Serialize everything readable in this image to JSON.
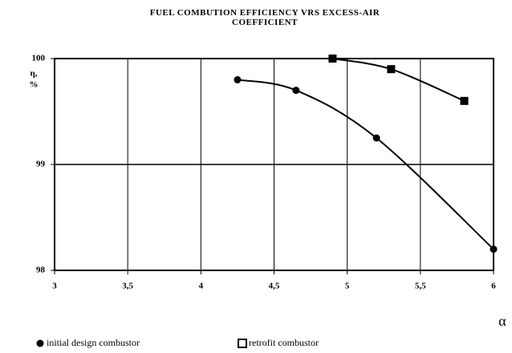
{
  "chart_data": {
    "type": "line",
    "title": "FUEL COMBUTION EFFICIENCY VRS EXCESS-AIR COEFFICIENT",
    "y_label": [
      "η,",
      "%"
    ],
    "x_label": "α",
    "xlim": [
      3,
      6
    ],
    "xticks": [
      3,
      {
        "value": 3.5,
        "label": "3,5"
      },
      4,
      {
        "value": 4.5,
        "label": "4,5"
      },
      5,
      {
        "value": 5.5,
        "label": "5,5"
      },
      6
    ],
    "ylim": [
      98,
      100
    ],
    "yticks": [
      98,
      99,
      100
    ],
    "grid": true,
    "series": [
      {
        "name": "initial design combustor",
        "color": "#000000",
        "marker": "circle",
        "x": [
          4.25,
          4.65,
          5.2,
          6
        ],
        "values": [
          99.8,
          99.7,
          99.25,
          98.2
        ]
      },
      {
        "name": "retrofit combustor",
        "color": "#000000",
        "marker": "square",
        "x": [
          4.9,
          5.3,
          5.8
        ],
        "values": [
          100,
          99.9,
          99.6
        ]
      }
    ]
  }
}
